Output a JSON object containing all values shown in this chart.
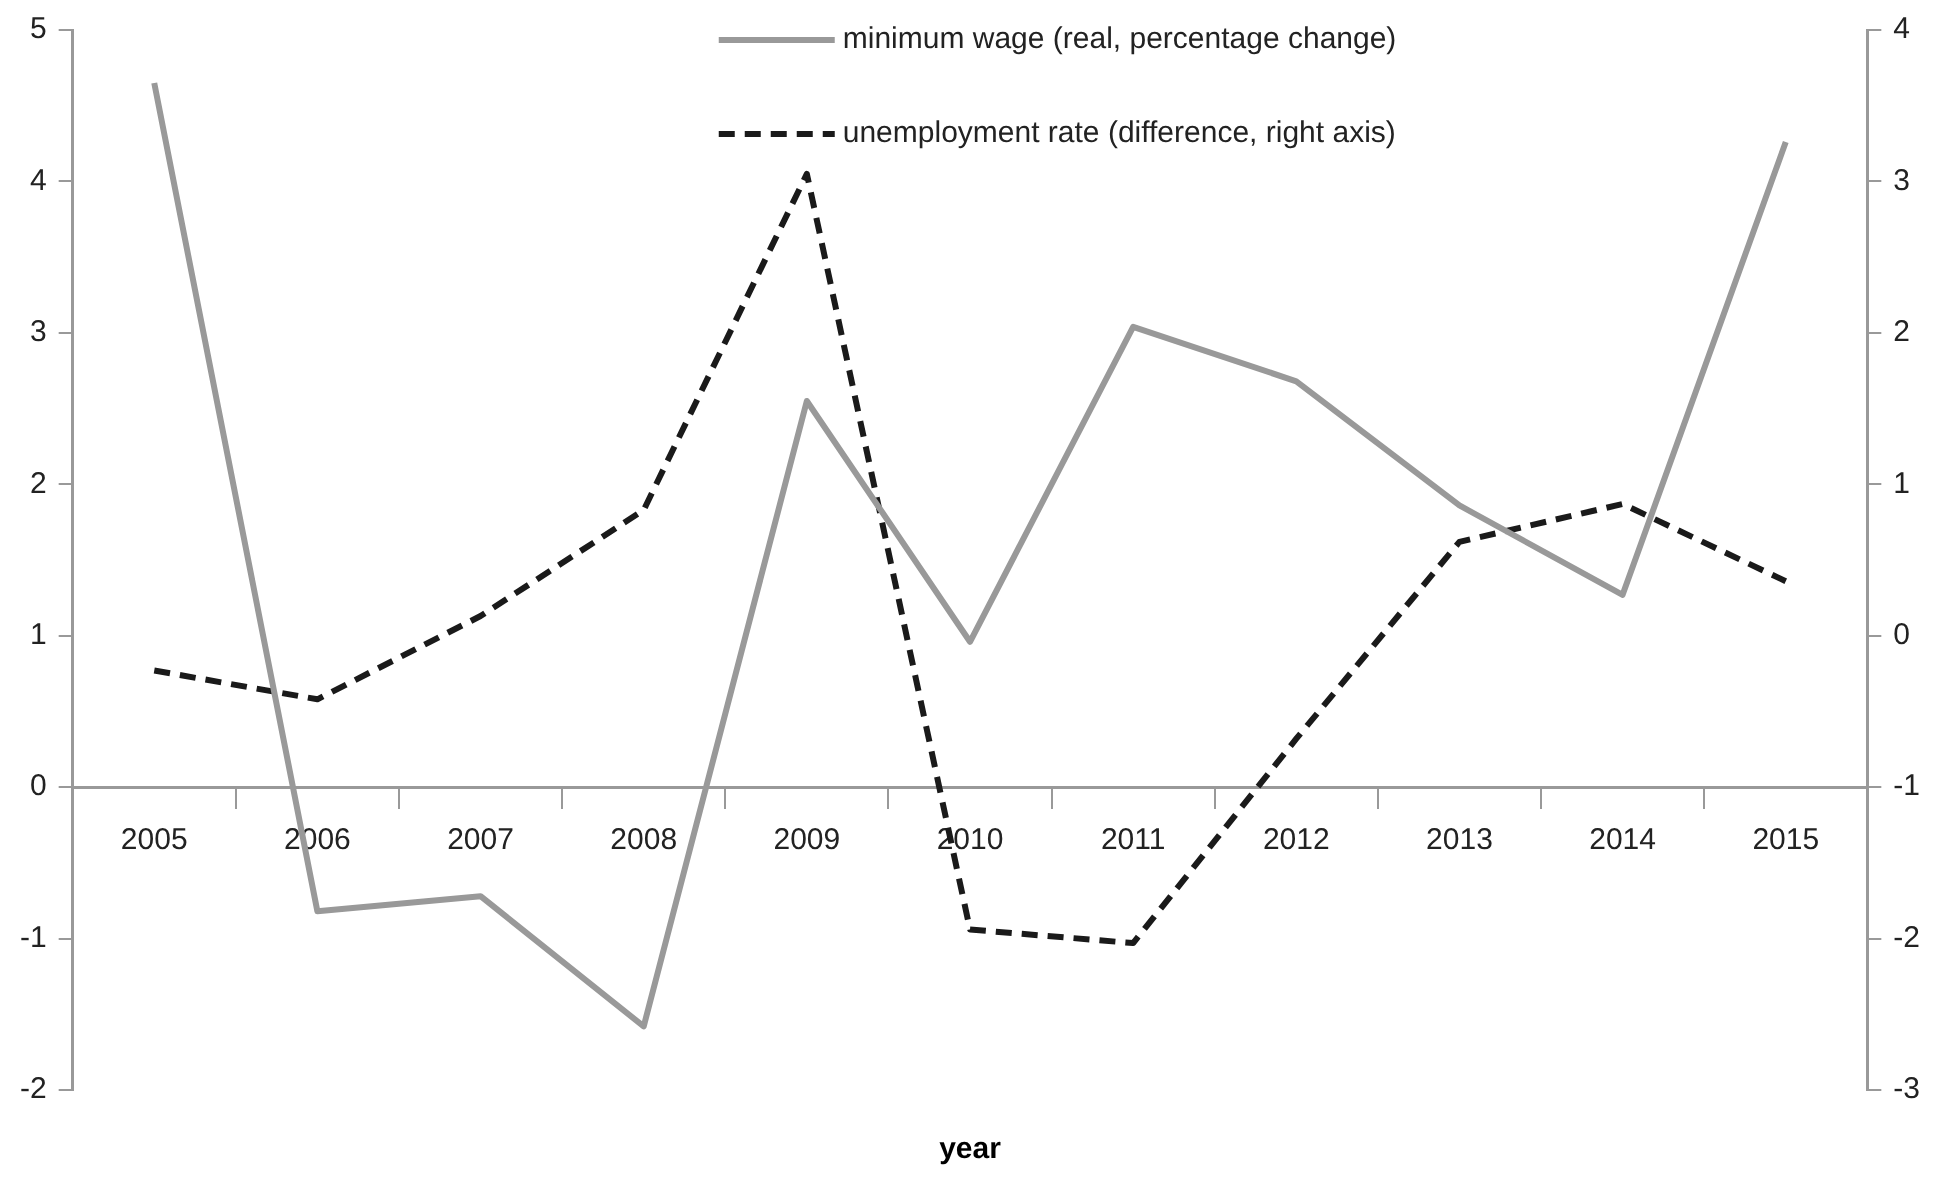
{
  "chart_data": {
    "type": "line",
    "xlabel": "year",
    "categories": [
      "2005",
      "2006",
      "2007",
      "2008",
      "2009",
      "2010",
      "2011",
      "2012",
      "2013",
      "2014",
      "2015"
    ],
    "series": [
      {
        "name": "minimum wage (real, percentage change)",
        "color": "#999999",
        "line_style": "solid",
        "values": [
          4.65,
          -0.82,
          -0.72,
          -1.58,
          2.55,
          0.96,
          3.04,
          2.68,
          1.86,
          1.27,
          4.26
        ]
      },
      {
        "name": "unemployment rate (difference, right axis)",
        "color": "#1a1a1a",
        "line_style": "dashed",
        "axis": "y2",
        "values": [
          -0.23,
          -0.42,
          0.13,
          0.83,
          3.05,
          -1.94,
          -2.03,
          -0.68,
          0.62,
          0.87,
          0.36
        ]
      }
    ],
    "ylim": [
      -2,
      5
    ],
    "yticks": [
      -2,
      -1,
      0,
      1,
      2,
      3,
      4,
      5
    ],
    "y2lim": [
      -3,
      4
    ],
    "y2ticks": [
      -3,
      -2,
      -1,
      0,
      1,
      2,
      3,
      4
    ],
    "grid": false,
    "legend": "top",
    "marker": "none"
  }
}
